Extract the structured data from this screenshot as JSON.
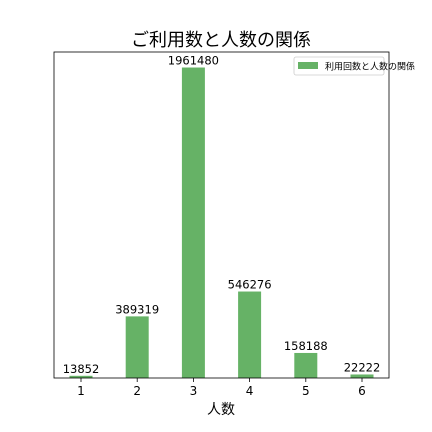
{
  "chart_data": {
    "type": "bar",
    "title": "ご利用数と人数の関係",
    "xlabel": "人数",
    "ylabel": "",
    "categories": [
      "1",
      "2",
      "3",
      "4",
      "5",
      "6"
    ],
    "series": [
      {
        "name": "利用回数と人数の関係",
        "values": [
          13852,
          389319,
          1961480,
          546276,
          158188,
          22222
        ],
        "color": "#66b266"
      }
    ],
    "ylim": [
      0,
      2059554
    ],
    "grid": false,
    "legend_position": "top-right",
    "y_ticks_visible": false
  }
}
